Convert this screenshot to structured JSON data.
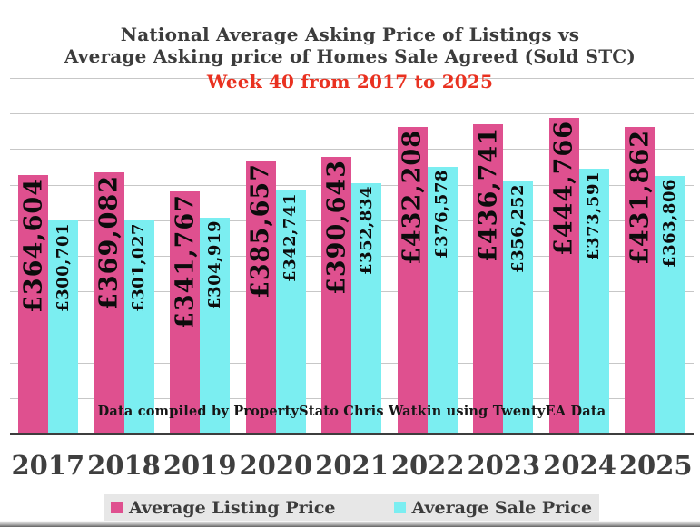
{
  "slide": {
    "title_line1": "National Average Asking Price of Listings vs",
    "title_line2": "Average Asking price of Homes Sale Agreed (Sold STC)",
    "subtitle": "Week 40 from 2017 to 2025",
    "note": "Data compiled by PropertyStato Chris Watkin using TwentyEA Data"
  },
  "colors": {
    "listing_pink": "#df508f",
    "sale_cyan": "#7beef1",
    "subtitle_red": "#e93120",
    "title_gray": "#3c3c3c",
    "gridline": "#c7c7c7",
    "axis": "#3d3d3d"
  },
  "legend": {
    "items": [
      {
        "label": "Average Listing Price",
        "color_key": "listing_pink"
      },
      {
        "label": "Average Sale Price",
        "color_key": "sale_cyan"
      }
    ]
  },
  "chart_data": {
    "type": "bar",
    "title": "National Average Asking Price of Listings vs Average Asking price of Homes Sale Agreed (Sold STC)",
    "subtitle": "Week 40 from 2017 to 2025",
    "categories": [
      "2017",
      "2018",
      "2019",
      "2020",
      "2021",
      "2022",
      "2023",
      "2024",
      "2025"
    ],
    "series": [
      {
        "name": "Average Listing Price",
        "color": "#df508f",
        "values": [
          364604,
          369082,
          341767,
          385657,
          390643,
          432208,
          436741,
          444766,
          431862
        ],
        "labels": [
          "£364,604",
          "£369,082",
          "£341,767",
          "£385,657",
          "£390,643",
          "£432,208",
          "£436,741",
          "£444,766",
          "£431,862"
        ]
      },
      {
        "name": "Average Sale Price",
        "color": "#7beef1",
        "values": [
          300701,
          301027,
          304919,
          342741,
          352834,
          376578,
          356252,
          373591,
          363806
        ],
        "labels": [
          "£300,701",
          "£301,027",
          "£304,919",
          "£342,741",
          "£352,834",
          "£376,578",
          "£356,252",
          "£373,591",
          "£363,806"
        ]
      }
    ],
    "xlabel": "",
    "ylabel": "",
    "ylim": [
      0,
      500000
    ],
    "gridline_step": 50000,
    "grid": true,
    "legend_position": "bottom",
    "bar_label_rotation": 90,
    "y_axis_labels_shown": false
  }
}
